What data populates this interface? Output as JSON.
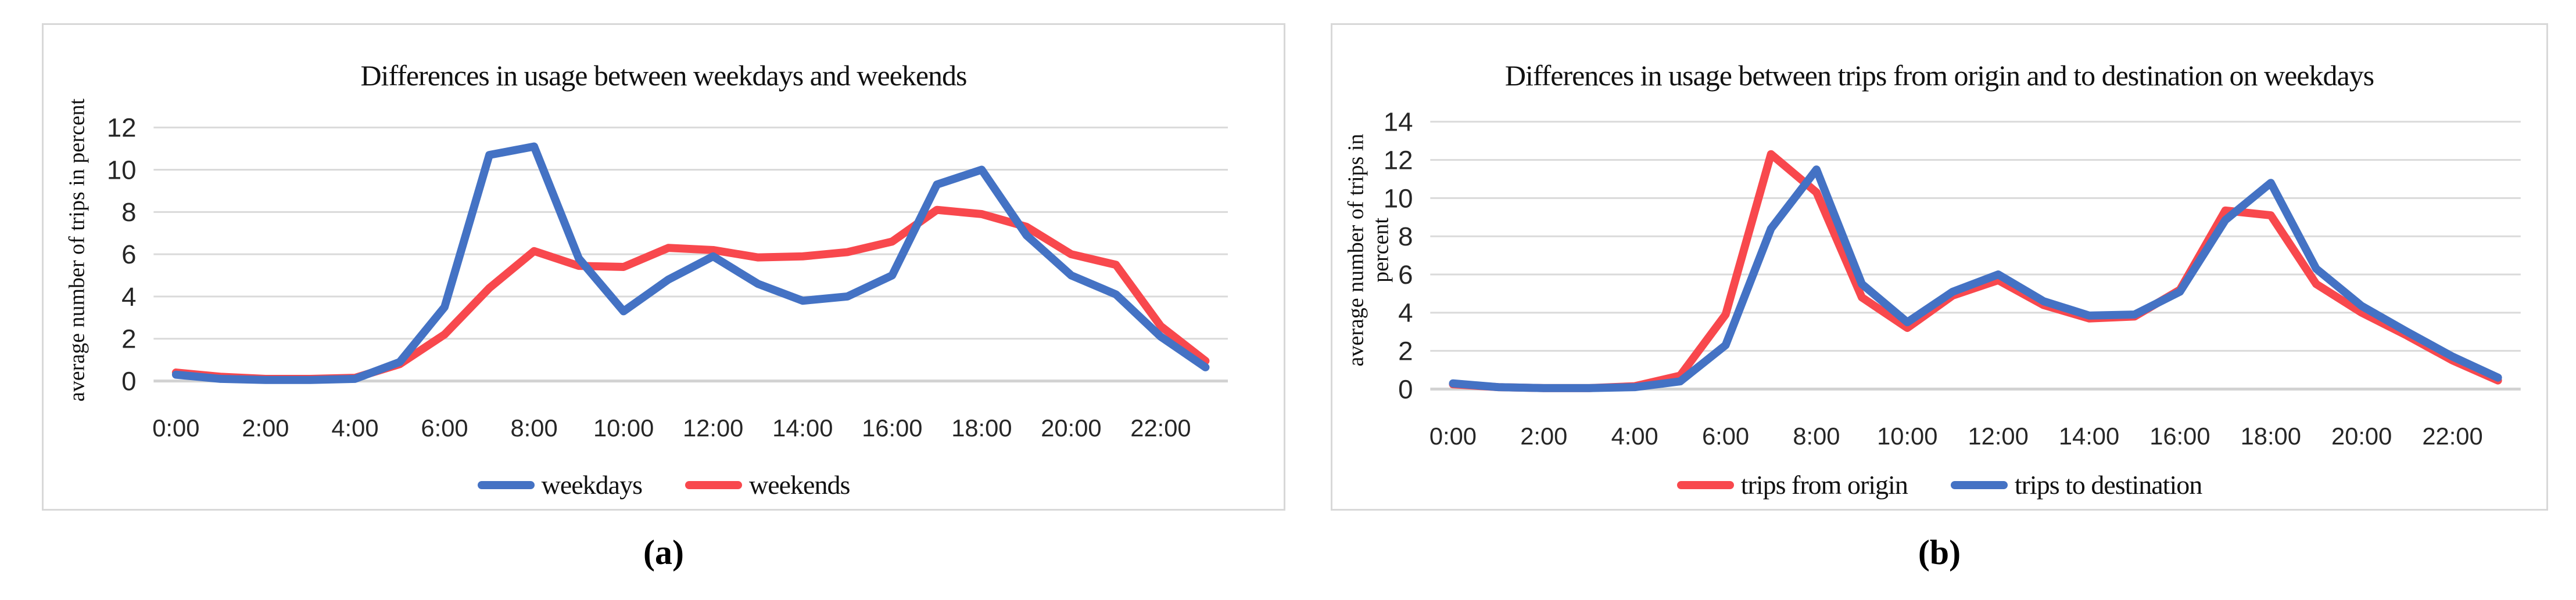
{
  "captions": [
    "(a)",
    "(b)"
  ],
  "chart_data": [
    {
      "type": "line",
      "title": "Differences in usage between weekdays and weekends",
      "ylabel": "average number of trips in percent",
      "xlabel": "",
      "x": [
        "0:00",
        "1:00",
        "2:00",
        "3:00",
        "4:00",
        "5:00",
        "6:00",
        "7:00",
        "8:00",
        "9:00",
        "10:00",
        "11:00",
        "12:00",
        "13:00",
        "14:00",
        "15:00",
        "16:00",
        "17:00",
        "18:00",
        "19:00",
        "20:00",
        "21:00",
        "22:00",
        "23:00"
      ],
      "x_tick_interval": 2,
      "ylim": [
        0,
        12
      ],
      "ytick_step": 2,
      "grid": "horizontal",
      "grid_color": "#DADADA",
      "axis_line_color": "#D2D2D2",
      "legend_position": "bottom",
      "draw_order": [
        1,
        0
      ],
      "series": [
        {
          "name": "weekdays",
          "color": "#4472C4",
          "values": [
            0.3,
            0.1,
            0.05,
            0.05,
            0.1,
            0.9,
            3.5,
            10.7,
            11.1,
            5.8,
            3.3,
            4.8,
            5.9,
            4.6,
            3.8,
            4.0,
            5.0,
            9.3,
            10.0,
            6.9,
            5.0,
            4.1,
            2.1,
            0.65
          ]
        },
        {
          "name": "weekends",
          "color": "#F8484D",
          "values": [
            0.4,
            0.2,
            0.1,
            0.1,
            0.15,
            0.8,
            2.2,
            4.4,
            6.15,
            5.45,
            5.4,
            6.3,
            6.2,
            5.85,
            5.9,
            6.1,
            6.6,
            8.1,
            7.9,
            7.3,
            6.0,
            5.5,
            2.6,
            0.95
          ]
        }
      ]
    },
    {
      "type": "line",
      "title": "Differences in usage between trips from origin and to destination on weekdays",
      "ylabel": "average number of trips in\npercent",
      "xlabel": "",
      "x": [
        "0:00",
        "1:00",
        "2:00",
        "3:00",
        "4:00",
        "5:00",
        "6:00",
        "7:00",
        "8:00",
        "9:00",
        "10:00",
        "11:00",
        "12:00",
        "13:00",
        "14:00",
        "15:00",
        "16:00",
        "17:00",
        "18:00",
        "19:00",
        "20:00",
        "21:00",
        "22:00",
        "23:00"
      ],
      "x_tick_interval": 2,
      "ylim": [
        0,
        14
      ],
      "ytick_step": 2,
      "grid": "horizontal",
      "grid_color": "#DADADA",
      "axis_line_color": "#D2D2D2",
      "legend_position": "bottom",
      "draw_order": [
        0,
        1
      ],
      "series": [
        {
          "name": "trips from origin",
          "color": "#F8484D",
          "values": [
            0.25,
            0.1,
            0.05,
            0.05,
            0.15,
            0.7,
            3.9,
            12.3,
            10.3,
            4.8,
            3.2,
            4.9,
            5.7,
            4.4,
            3.7,
            3.8,
            5.2,
            9.35,
            9.1,
            5.5,
            4.0,
            2.8,
            1.5,
            0.45
          ]
        },
        {
          "name": "trips to destination",
          "color": "#4472C4",
          "values": [
            0.3,
            0.1,
            0.05,
            0.05,
            0.1,
            0.4,
            2.3,
            8.4,
            11.5,
            5.5,
            3.5,
            5.1,
            6.0,
            4.6,
            3.85,
            3.9,
            5.1,
            8.85,
            10.8,
            6.3,
            4.35,
            3.0,
            1.7,
            0.6
          ]
        }
      ]
    }
  ]
}
